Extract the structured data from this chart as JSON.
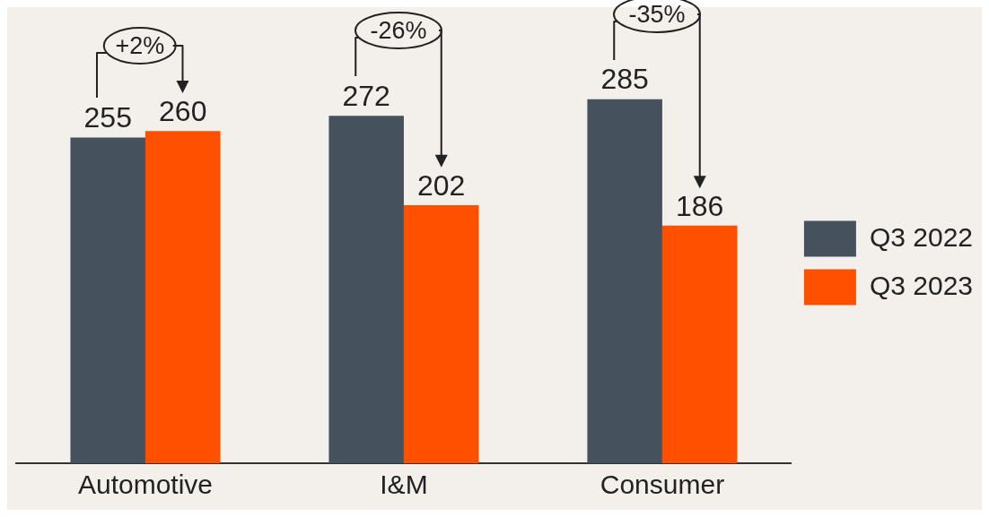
{
  "chart_data": {
    "type": "bar",
    "categories": [
      "Automotive",
      "I&M",
      "Consumer"
    ],
    "series": [
      {
        "name": "Q3 2022",
        "color": "#45525e",
        "values": [
          255,
          272,
          285
        ]
      },
      {
        "name": "Q3 2023",
        "color": "#ff5000",
        "values": [
          260,
          202,
          186
        ]
      }
    ],
    "data_labels": true,
    "legend": "right",
    "grid": false,
    "annotations": [
      "+2%",
      "-26%",
      "-35%"
    ]
  }
}
